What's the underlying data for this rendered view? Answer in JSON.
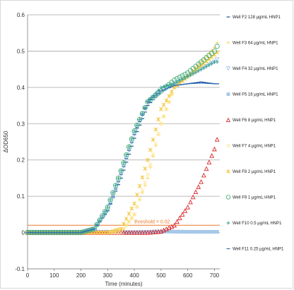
{
  "chart_data": {
    "type": "scatter",
    "title": "",
    "xlabel": "Time (minutes)",
    "ylabel": "ΔOD650",
    "xlim": [
      0,
      720
    ],
    "ylim": [
      -0.1,
      0.6
    ],
    "x_ticks": [
      "0",
      "100",
      "200",
      "300",
      "400",
      "500",
      "600",
      "700"
    ],
    "y_ticks": [
      "-0.1",
      "0",
      "0.1",
      "0.2",
      "0.3",
      "0.4",
      "0.5",
      "0.6"
    ],
    "grid": "horizontal",
    "legend_position": "right",
    "threshold": {
      "value": 0.02,
      "label": "threshold = 0.02",
      "color": "#e8792b"
    },
    "series": [
      {
        "name": "Well F2 128 μg/mL HNP1",
        "marker": "dash",
        "color": "#1f4e9e",
        "points": [
          [
            0,
            0
          ],
          [
            200,
            0
          ],
          [
            250,
            0.01
          ],
          [
            300,
            0.06
          ],
          [
            350,
            0.15
          ],
          [
            400,
            0.26
          ],
          [
            450,
            0.35
          ],
          [
            500,
            0.39
          ],
          [
            550,
            0.405
          ],
          [
            600,
            0.41
          ],
          [
            650,
            0.415
          ],
          [
            700,
            0.41
          ],
          [
            715,
            0.41
          ]
        ]
      },
      {
        "name": "Well F3 64 μg/mL HNP1",
        "marker": "plus",
        "color": "#ffd966",
        "points": [
          [
            0,
            0
          ],
          [
            350,
            0
          ],
          [
            400,
            0.05
          ],
          [
            450,
            0.15
          ],
          [
            500,
            0.3
          ],
          [
            550,
            0.4
          ],
          [
            600,
            0.43
          ],
          [
            650,
            0.47
          ],
          [
            700,
            0.51
          ],
          [
            715,
            0.53
          ]
        ]
      },
      {
        "name": "Well F4 32 μg/mL HNP1",
        "marker": "triangle-down",
        "color": "#9dc3e6",
        "points": [
          [
            0,
            0
          ],
          [
            200,
            0
          ],
          [
            250,
            0.01
          ],
          [
            300,
            0.06
          ],
          [
            350,
            0.16
          ],
          [
            400,
            0.27
          ],
          [
            450,
            0.36
          ],
          [
            500,
            0.39
          ],
          [
            550,
            0.41
          ],
          [
            600,
            0.43
          ],
          [
            650,
            0.45
          ],
          [
            700,
            0.47
          ],
          [
            715,
            0.48
          ]
        ]
      },
      {
        "name": "Well F5 16 μg/mL HNP1",
        "marker": "square",
        "color": "#a6c8e8",
        "points": [
          [
            0,
            0.002
          ],
          [
            300,
            0.002
          ],
          [
            400,
            0.001
          ],
          [
            500,
            0.003
          ],
          [
            600,
            0.002
          ],
          [
            700,
            0.002
          ],
          [
            715,
            0.002
          ]
        ]
      },
      {
        "name": "Well F6 8 μg/mL HNP1",
        "marker": "triangle",
        "color": "#d9262a",
        "points": [
          [
            0,
            0
          ],
          [
            450,
            0
          ],
          [
            500,
            0.003
          ],
          [
            550,
            0.02
          ],
          [
            600,
            0.07
          ],
          [
            650,
            0.14
          ],
          [
            700,
            0.23
          ],
          [
            715,
            0.27
          ]
        ]
      },
      {
        "name": "Well F7 4 μg/mL HNP1",
        "marker": "x",
        "color": "#ffe699",
        "points": [
          [
            0,
            0
          ],
          [
            350,
            0
          ],
          [
            400,
            0.05
          ],
          [
            450,
            0.16
          ],
          [
            500,
            0.3
          ],
          [
            550,
            0.4
          ],
          [
            600,
            0.43
          ],
          [
            650,
            0.46
          ],
          [
            700,
            0.49
          ],
          [
            715,
            0.5
          ]
        ]
      },
      {
        "name": "Well F8 2 μg/mL HNP1",
        "marker": "star",
        "color": "#f4c842",
        "points": [
          [
            0,
            0
          ],
          [
            300,
            0
          ],
          [
            350,
            0.01
          ],
          [
            400,
            0.08
          ],
          [
            450,
            0.2
          ],
          [
            500,
            0.34
          ],
          [
            550,
            0.4
          ],
          [
            600,
            0.43
          ],
          [
            650,
            0.46
          ],
          [
            700,
            0.49
          ],
          [
            715,
            0.5
          ]
        ]
      },
      {
        "name": "Well F9 1 μg/mL HNP1",
        "marker": "circle",
        "color": "#4daf7c",
        "points": [
          [
            0,
            0
          ],
          [
            200,
            0
          ],
          [
            250,
            0.01
          ],
          [
            300,
            0.07
          ],
          [
            350,
            0.17
          ],
          [
            400,
            0.28
          ],
          [
            450,
            0.36
          ],
          [
            500,
            0.39
          ],
          [
            550,
            0.42
          ],
          [
            600,
            0.44
          ],
          [
            650,
            0.47
          ],
          [
            700,
            0.5
          ],
          [
            715,
            0.52
          ]
        ]
      },
      {
        "name": "Well F10 0.5 μg/mL HNP1",
        "marker": "plus",
        "color": "#2e9e8f",
        "points": [
          [
            0,
            0
          ],
          [
            200,
            0
          ],
          [
            250,
            0.01
          ],
          [
            300,
            0.07
          ],
          [
            350,
            0.17
          ],
          [
            400,
            0.28
          ],
          [
            450,
            0.36
          ],
          [
            500,
            0.4
          ],
          [
            550,
            0.41
          ],
          [
            600,
            0.43
          ],
          [
            650,
            0.45
          ],
          [
            700,
            0.47
          ],
          [
            715,
            0.47
          ]
        ]
      },
      {
        "name": "Well F11 0.25 μg/mL HNP1",
        "marker": "dash",
        "color": "#2f6db5",
        "points": [
          [
            0,
            0
          ],
          [
            200,
            0
          ],
          [
            250,
            0.01
          ],
          [
            300,
            0.06
          ],
          [
            350,
            0.16
          ],
          [
            400,
            0.27
          ],
          [
            450,
            0.36
          ],
          [
            500,
            0.39
          ],
          [
            550,
            0.405
          ],
          [
            600,
            0.41
          ],
          [
            650,
            0.412
          ],
          [
            700,
            0.41
          ],
          [
            715,
            0.41
          ]
        ]
      }
    ]
  }
}
